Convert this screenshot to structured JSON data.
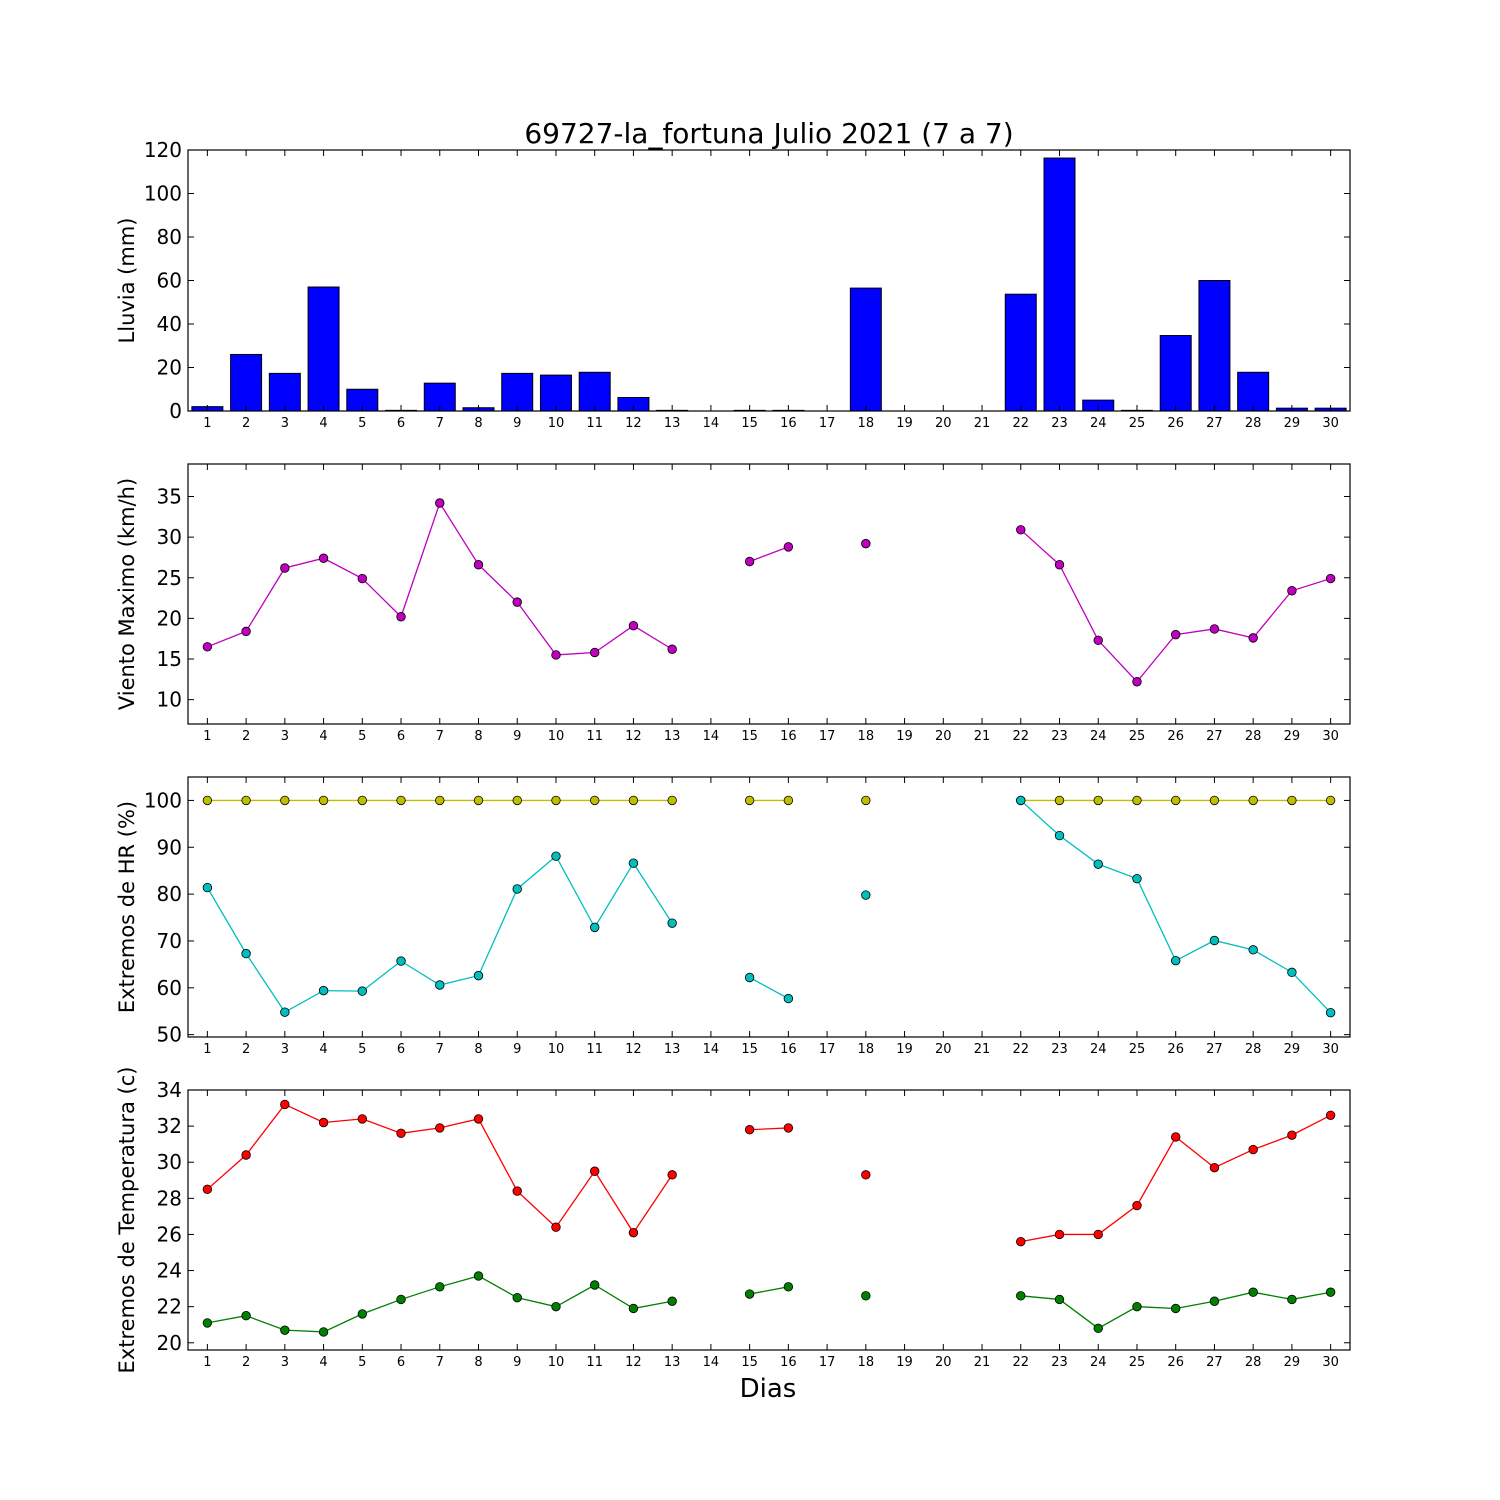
{
  "figure": {
    "title": "69727-la_fortuna Julio 2021  (7 a 7)",
    "xlabel": "Dias"
  },
  "chart_data": [
    {
      "id": "lluvia",
      "type": "bar",
      "ylabel": "Lluvia (mm)",
      "ylim": [
        0,
        120
      ],
      "yticks": [
        0,
        20,
        40,
        60,
        80,
        100,
        120
      ],
      "categories": [
        "1",
        "2",
        "3",
        "4",
        "5",
        "6",
        "7",
        "8",
        "9",
        "10",
        "11",
        "12",
        "13",
        "14",
        "15",
        "16",
        "17",
        "18",
        "19",
        "20",
        "21",
        "22",
        "23",
        "24",
        "25",
        "26",
        "27",
        "28",
        "29",
        "30"
      ],
      "series": [
        {
          "color": "#0000ff",
          "values": [
            2.0,
            26.0,
            17.3,
            57.0,
            10.0,
            0.3,
            12.8,
            1.5,
            17.3,
            16.5,
            17.8,
            6.2,
            0.3,
            0,
            0.3,
            0.3,
            0,
            56.5,
            0,
            0,
            0,
            53.7,
            116.3,
            5.0,
            0.3,
            34.7,
            60.0,
            17.8,
            1.3,
            1.3
          ]
        }
      ],
      "grid": false
    },
    {
      "id": "viento",
      "type": "line",
      "ylabel": "Viento Maximo (km/h)",
      "ylim": [
        7,
        39
      ],
      "yticks": [
        10,
        15,
        20,
        25,
        30,
        35
      ],
      "categories": [
        "1",
        "2",
        "3",
        "4",
        "5",
        "6",
        "7",
        "8",
        "9",
        "10",
        "11",
        "12",
        "13",
        "14",
        "15",
        "16",
        "17",
        "18",
        "19",
        "20",
        "21",
        "22",
        "23",
        "24",
        "25",
        "26",
        "27",
        "28",
        "29",
        "30"
      ],
      "series": [
        {
          "color": "#bf00bf",
          "values": [
            16.5,
            18.4,
            26.2,
            27.4,
            24.9,
            20.2,
            34.2,
            26.6,
            22.0,
            15.5,
            15.8,
            19.1,
            16.2,
            null,
            27.0,
            28.8,
            null,
            29.2,
            null,
            null,
            null,
            30.9,
            26.6,
            17.3,
            12.2,
            18.0,
            18.7,
            17.6,
            23.4,
            24.9
          ]
        }
      ],
      "grid": false
    },
    {
      "id": "hr",
      "type": "line",
      "ylabel": "Extremos de HR (%)",
      "ylim": [
        49.5,
        105
      ],
      "yticks": [
        50,
        60,
        70,
        80,
        90,
        100
      ],
      "categories": [
        "1",
        "2",
        "3",
        "4",
        "5",
        "6",
        "7",
        "8",
        "9",
        "10",
        "11",
        "12",
        "13",
        "14",
        "15",
        "16",
        "17",
        "18",
        "19",
        "20",
        "21",
        "22",
        "23",
        "24",
        "25",
        "26",
        "27",
        "28",
        "29",
        "30"
      ],
      "series": [
        {
          "color": "#bfbf00",
          "values": [
            100,
            100,
            100,
            100,
            100,
            100,
            100,
            100,
            100,
            100,
            100,
            100,
            100,
            null,
            100,
            100,
            null,
            100,
            null,
            null,
            null,
            100,
            100,
            100,
            100,
            100,
            100,
            100,
            100,
            100
          ]
        },
        {
          "color": "#00bfbf",
          "values": [
            81.4,
            67.3,
            54.8,
            59.4,
            59.3,
            65.7,
            60.6,
            62.6,
            81.1,
            88.1,
            72.9,
            86.6,
            73.8,
            null,
            62.2,
            57.7,
            null,
            79.8,
            null,
            null,
            null,
            100,
            92.5,
            86.4,
            83.3,
            65.8,
            70.1,
            68.1,
            63.3,
            54.7
          ]
        }
      ],
      "grid": false
    },
    {
      "id": "temp",
      "type": "line",
      "ylabel": "Extremos de Temperatura (c)",
      "ylim": [
        19.6,
        34
      ],
      "yticks": [
        20,
        22,
        24,
        26,
        28,
        30,
        32,
        34
      ],
      "categories": [
        "1",
        "2",
        "3",
        "4",
        "5",
        "6",
        "7",
        "8",
        "9",
        "10",
        "11",
        "12",
        "13",
        "14",
        "15",
        "16",
        "17",
        "18",
        "19",
        "20",
        "21",
        "22",
        "23",
        "24",
        "25",
        "26",
        "27",
        "28",
        "29",
        "30"
      ],
      "series": [
        {
          "color": "#ff0000",
          "values": [
            28.5,
            30.4,
            33.2,
            32.2,
            32.4,
            31.6,
            31.9,
            32.4,
            28.4,
            26.4,
            29.5,
            26.1,
            29.3,
            null,
            31.8,
            31.9,
            null,
            29.3,
            null,
            null,
            null,
            25.6,
            26.0,
            26.0,
            27.6,
            31.4,
            29.7,
            30.7,
            31.5,
            32.6
          ]
        },
        {
          "color": "#008000",
          "values": [
            21.1,
            21.5,
            20.7,
            20.6,
            21.6,
            22.4,
            23.1,
            23.7,
            22.5,
            22.0,
            23.2,
            21.9,
            22.3,
            null,
            22.7,
            23.1,
            null,
            22.6,
            null,
            null,
            null,
            22.6,
            22.4,
            20.8,
            22.0,
            21.9,
            22.3,
            22.8,
            22.4,
            22.8
          ]
        }
      ],
      "grid": false
    }
  ]
}
